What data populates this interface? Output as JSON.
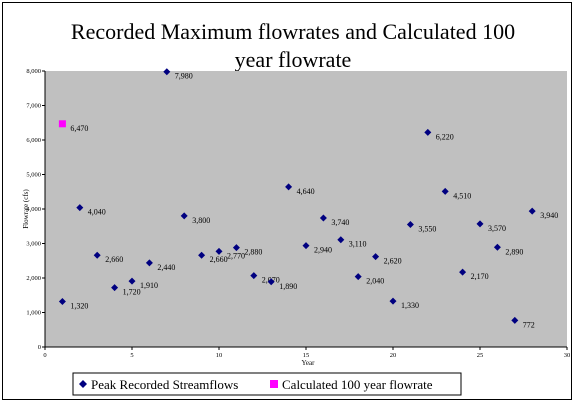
{
  "chart_data": {
    "type": "scatter",
    "title_lines": [
      "Recorded Maximum flowrates and Calculated 100",
      "year flowrate"
    ],
    "xlabel": "Year",
    "ylabel": "Flowrate (cfs)",
    "xlim": [
      0,
      30
    ],
    "ylim": [
      0,
      8000
    ],
    "x_ticks": [
      0,
      5,
      10,
      15,
      20,
      25,
      30
    ],
    "y_ticks": [
      0,
      1000,
      2000,
      3000,
      4000,
      5000,
      6000,
      7000,
      8000
    ],
    "y_tick_labels": [
      "0",
      "1,000",
      "2,000",
      "3,000",
      "4,000",
      "5,000",
      "6,000",
      "7,000",
      "8,000"
    ],
    "grid": false,
    "legend_position": "bottom",
    "plot_background": "#c0c0c0",
    "series": [
      {
        "name": "Peak Recorded Streamflows",
        "color": "#000080",
        "marker": "diamond",
        "x": [
          1,
          2,
          3,
          4,
          5,
          6,
          7,
          8,
          9,
          10,
          11,
          12,
          13,
          14,
          15,
          16,
          17,
          18,
          19,
          20,
          21,
          22,
          23,
          24,
          25,
          26,
          27,
          28
        ],
        "y": [
          1320,
          4040,
          2660,
          1720,
          1910,
          2440,
          7980,
          3800,
          2660,
          2770,
          2880,
          2070,
          1890,
          4640,
          2940,
          3740,
          3110,
          2040,
          2620,
          1330,
          3550,
          6220,
          4510,
          2170,
          3570,
          2890,
          772,
          3940
        ],
        "labels": [
          "1,320",
          "4,040",
          "2,660",
          "1,720",
          "1,910",
          "2,440",
          "7,980",
          "3,800",
          "2,660",
          "2,770",
          "2,880",
          "2,070",
          "1,890",
          "4,640",
          "2,940",
          "3,740",
          "3,110",
          "2,040",
          "2,620",
          "1,330",
          "3,550",
          "6,220",
          "4,510",
          "2,170",
          "3,570",
          "2,890",
          "772",
          "3,940"
        ]
      },
      {
        "name": "Calculated 100 year flowrate",
        "color": "#ff00ff",
        "marker": "square",
        "x": [
          1
        ],
        "y": [
          6470
        ],
        "labels": [
          "6,470"
        ]
      }
    ]
  }
}
